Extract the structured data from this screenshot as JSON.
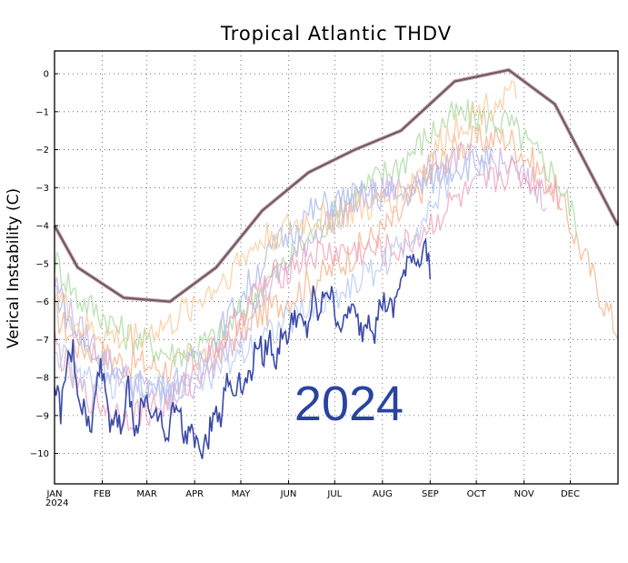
{
  "chart_data": {
    "type": "line",
    "title": "Tropical Atlantic THDV",
    "ylabel": "Verical Instability (C)",
    "xlabel": "",
    "year_label": "2024",
    "annotation": "2024",
    "ylim": [
      -10.8,
      0.6
    ],
    "xlim": [
      0,
      366
    ],
    "grid": true,
    "yticks": [
      0,
      -1,
      -2,
      -3,
      -4,
      -5,
      -6,
      -7,
      -8,
      -9,
      -10
    ],
    "months": [
      {
        "label": "JAN",
        "day": 0
      },
      {
        "label": "FEB",
        "day": 31
      },
      {
        "label": "MAR",
        "day": 60
      },
      {
        "label": "APR",
        "day": 91
      },
      {
        "label": "MAY",
        "day": 121
      },
      {
        "label": "JUN",
        "day": 152
      },
      {
        "label": "JUL",
        "day": 182
      },
      {
        "label": "AUG",
        "day": 213
      },
      {
        "label": "SEP",
        "day": 244
      },
      {
        "label": "OCT",
        "day": 274
      },
      {
        "label": "NOV",
        "day": 305
      },
      {
        "label": "DEC",
        "day": 335
      }
    ],
    "colors": {
      "current": "#3a4aa8",
      "climatology": "#6a5a62",
      "past_years": [
        "#f4b08a",
        "#a8d8a0",
        "#c9b0e0",
        "#a8b8e8",
        "#f0a0b8",
        "#f8c898",
        "#b8c8f0"
      ]
    },
    "series": [
      {
        "key": "climatology",
        "x": [
          0,
          15,
          45,
          75,
          105,
          135,
          165,
          195,
          225,
          260,
          295,
          325,
          366
        ],
        "y": [
          -4.0,
          -5.1,
          -5.9,
          -6.0,
          -5.1,
          -3.6,
          -2.6,
          -2.0,
          -1.5,
          -0.2,
          0.1,
          -0.8,
          -4.0
        ]
      },
      {
        "key": "2024",
        "x": [
          0,
          4,
          8,
          12,
          16,
          20,
          24,
          28,
          32,
          36,
          40,
          44,
          48,
          52,
          56,
          60,
          64,
          68,
          72,
          76,
          80,
          84,
          88,
          92,
          96,
          100,
          104,
          108,
          112,
          116,
          120,
          124,
          128,
          132,
          136,
          140,
          144,
          148,
          152,
          156,
          160,
          164,
          168,
          172,
          176,
          180,
          184,
          188,
          192,
          196,
          200,
          204,
          208,
          212,
          216,
          220,
          224,
          228,
          232,
          236,
          240,
          244
        ],
        "y": [
          -8.0,
          -8.9,
          -7.7,
          -7.3,
          -8.6,
          -8.9,
          -9.6,
          -7.6,
          -8.0,
          -9.2,
          -8.9,
          -9.3,
          -8.2,
          -9.6,
          -8.7,
          -8.5,
          -9.2,
          -8.7,
          -9.9,
          -9.0,
          -8.6,
          -9.7,
          -9.3,
          -9.6,
          -9.8,
          -9.6,
          -8.7,
          -9.1,
          -8.0,
          -8.4,
          -8.0,
          -8.2,
          -7.8,
          -7.0,
          -7.4,
          -7.0,
          -7.6,
          -6.8,
          -6.9,
          -6.3,
          -6.6,
          -6.8,
          -5.9,
          -6.5,
          -5.6,
          -5.9,
          -6.5,
          -6.7,
          -6.1,
          -6.5,
          -6.8,
          -6.3,
          -6.8,
          -6.0,
          -6.1,
          -6.3,
          -5.5,
          -5.3,
          -4.7,
          -5.0,
          -4.5,
          -5.1
        ]
      }
    ]
  }
}
